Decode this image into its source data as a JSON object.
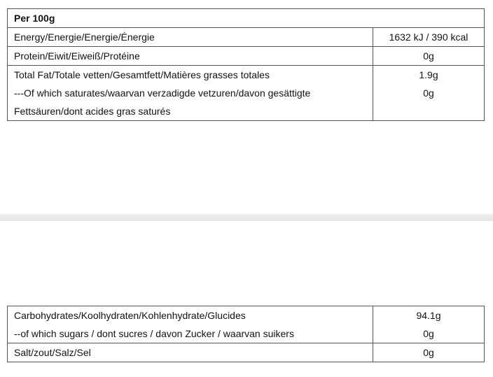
{
  "table1": {
    "header": "Per 100g",
    "rows": [
      {
        "labels": [
          "Energy/Energie/Energie/Énergie"
        ],
        "values": [
          "1632 kJ / 390 kcal"
        ]
      },
      {
        "labels": [
          "Protein/Eiwit/Eiweiß/Protéine"
        ],
        "values": [
          "0g"
        ]
      },
      {
        "labels": [
          "Total Fat/Totale vetten/Gesamtfett/Matières grasses totales",
          "---Of which saturates/waarvan verzadigde vetzuren/davon gesättigte",
          "Fettsäuren/dont acides gras saturés"
        ],
        "values": [
          "1.9g",
          "0g"
        ]
      }
    ]
  },
  "table2": {
    "rows": [
      {
        "labels": [
          "Carbohydrates/Koolhydraten/Kohlenhydrate/Glucides",
          "--of which sugars / dont sucres / davon Zucker / waarvan suikers"
        ],
        "values": [
          "94.1g",
          "0g"
        ]
      },
      {
        "labels": [
          "Salt/zout/Salz/Sel"
        ],
        "values": [
          "0g"
        ]
      }
    ]
  }
}
